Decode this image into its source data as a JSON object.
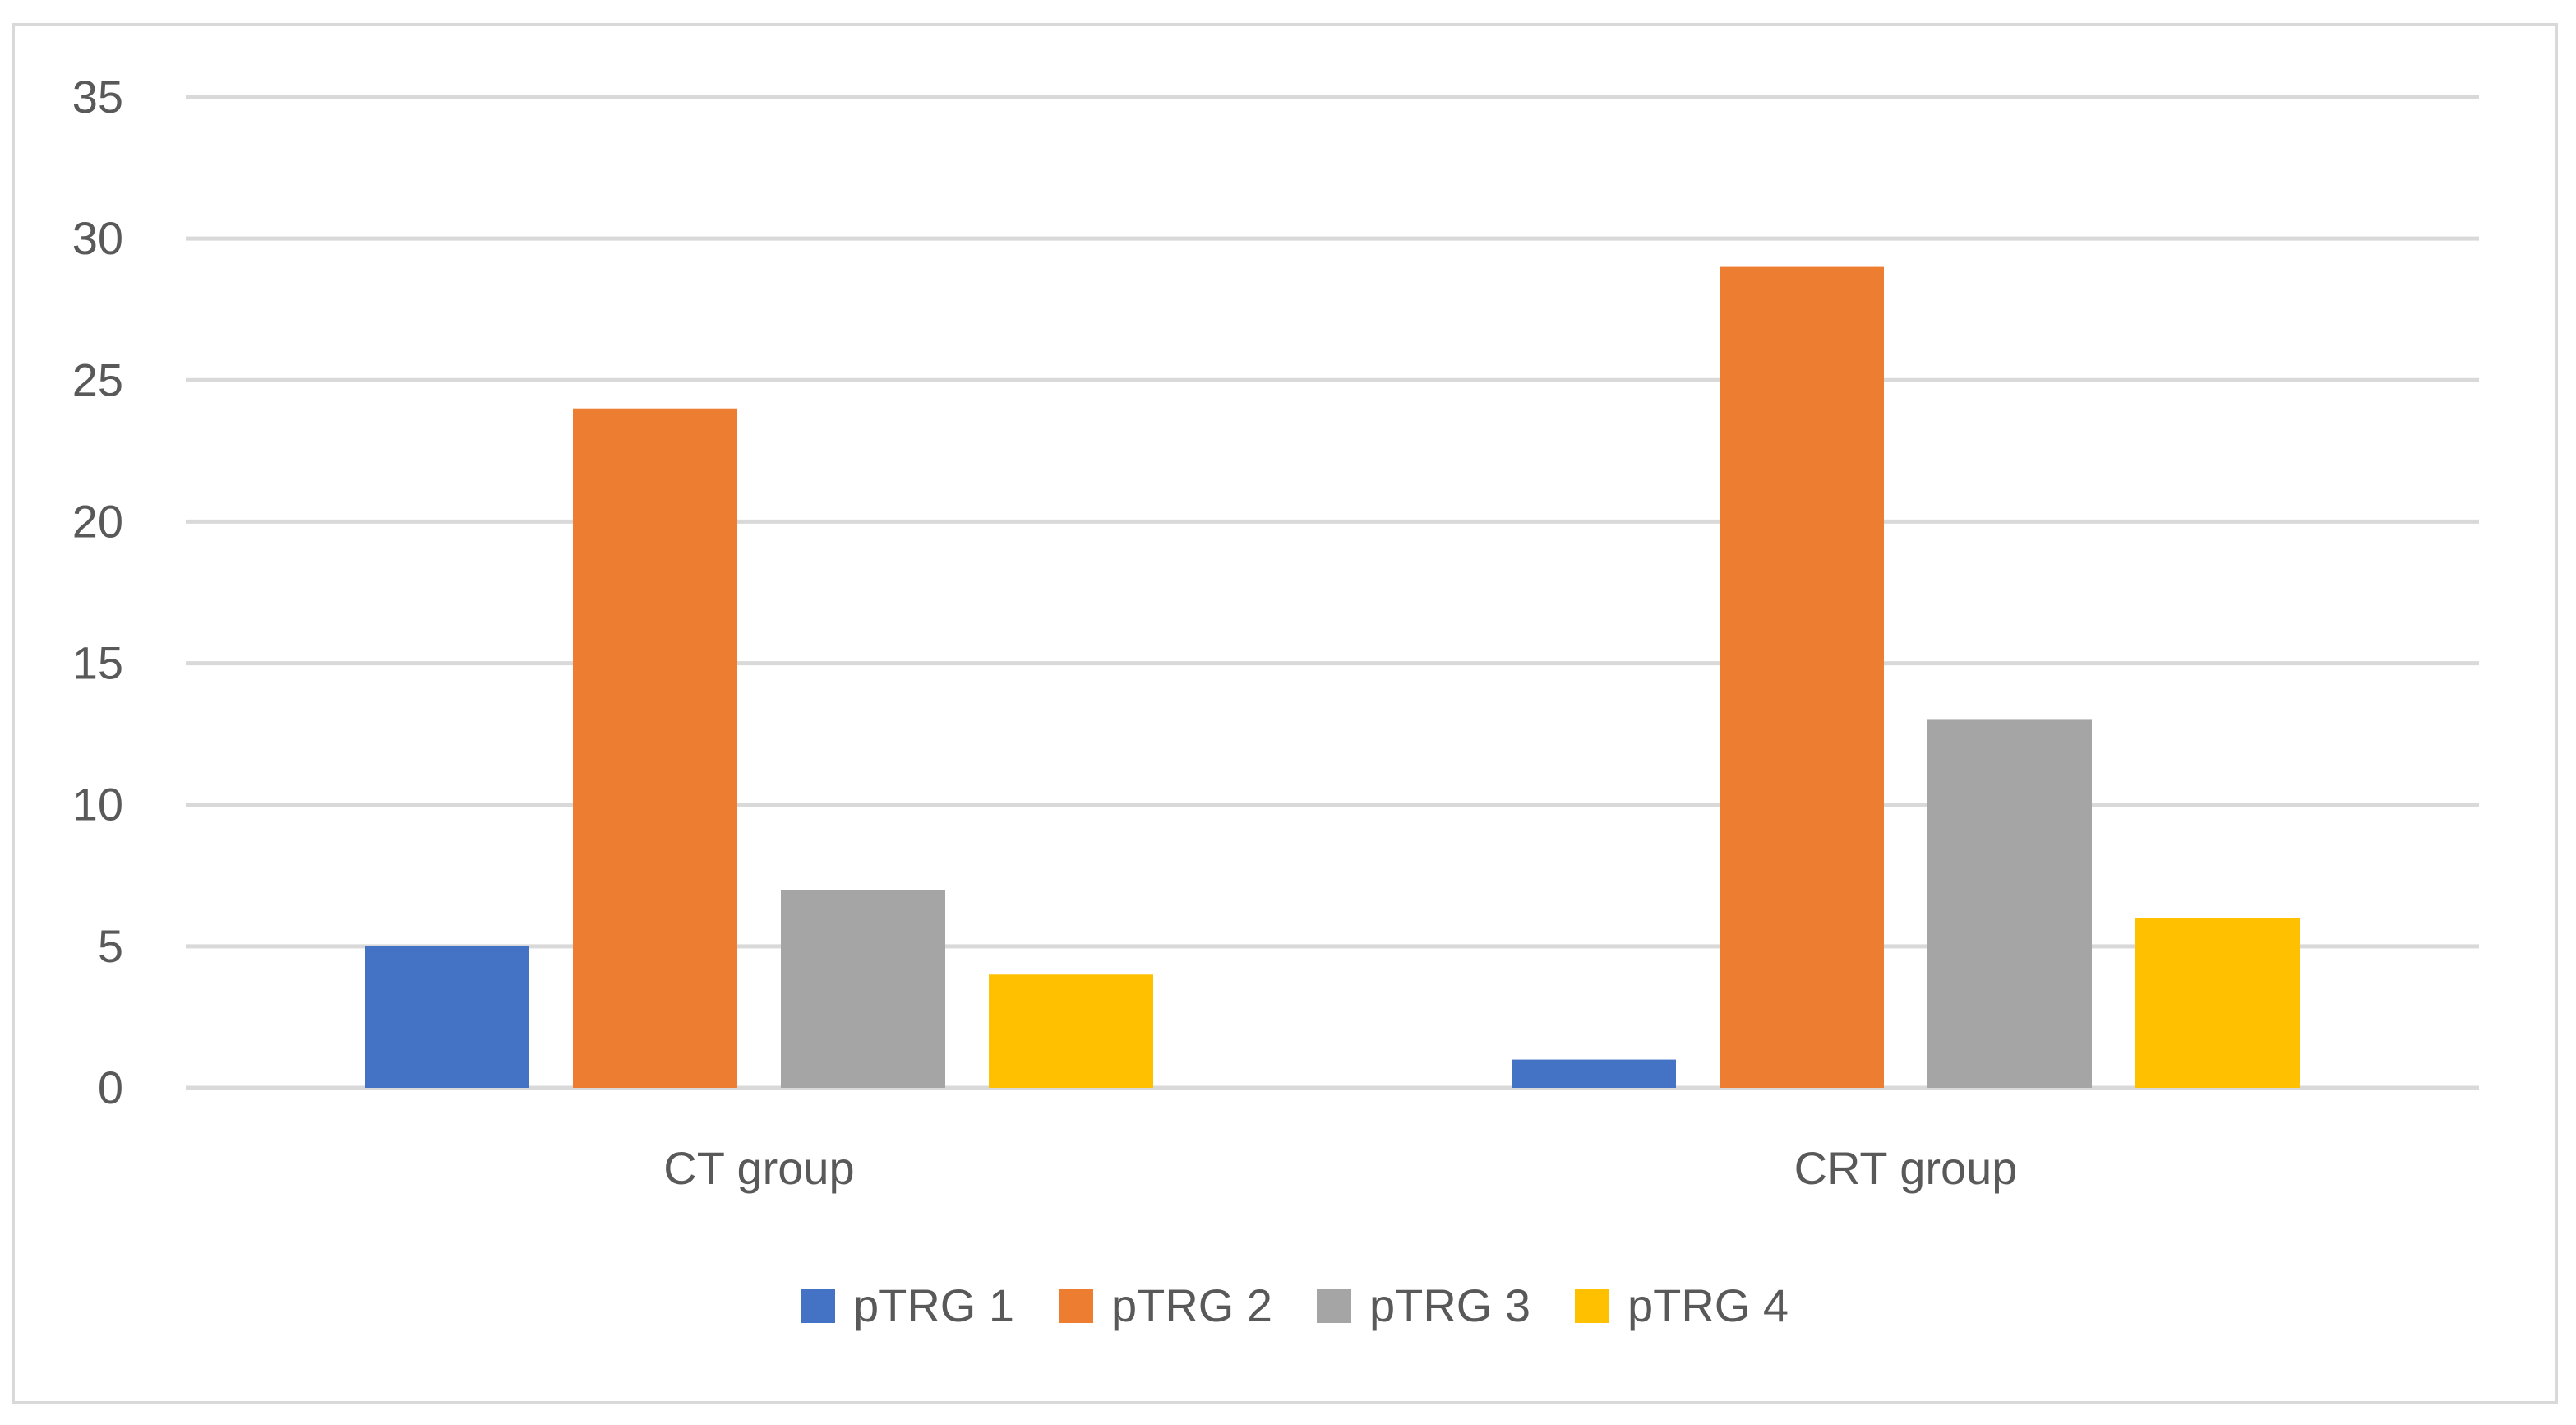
{
  "chart_data": {
    "type": "bar",
    "title": "",
    "xlabel": "",
    "ylabel": "",
    "ylim": [
      0,
      35
    ],
    "yticks": [
      0,
      5,
      10,
      15,
      20,
      25,
      30,
      35
    ],
    "grid": true,
    "legend_position": "bottom",
    "categories": [
      "CT group",
      "CRT group"
    ],
    "series": [
      {
        "name": "pTRG 1",
        "color": "#4472c4",
        "values": [
          5,
          1
        ]
      },
      {
        "name": "pTRG 2",
        "color": "#ed7d31",
        "values": [
          24,
          29
        ]
      },
      {
        "name": "pTRG 3",
        "color": "#a5a5a5",
        "values": [
          7,
          13
        ]
      },
      {
        "name": "pTRG 4",
        "color": "#ffc000",
        "values": [
          4,
          6
        ]
      }
    ]
  }
}
